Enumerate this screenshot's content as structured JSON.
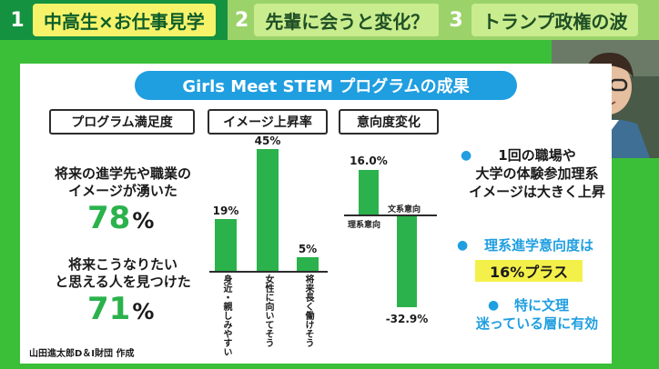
{
  "topics": [
    {
      "num": "1",
      "label": "中高生×お仕事見学"
    },
    {
      "num": "2",
      "label": "先輩に会うと変化？"
    },
    {
      "num": "3",
      "label": "トランプ政権の波"
    }
  ],
  "title": "Girls Meet STEM プログラムの成果",
  "sections": {
    "satisfaction": {
      "header": "プログラム満足度",
      "item1_line1": "将来の進学先や職業の",
      "item1_line2": "イメージが湧いた",
      "item1_value": "78",
      "item2_line1": "将来こうなりたい",
      "item2_line2": "と思える人を見つけた",
      "item2_value": "71",
      "unit": "%"
    },
    "image_rise": {
      "header": "イメージ上昇率"
    },
    "intent_change": {
      "header": "意向度変化"
    }
  },
  "chart_data": [
    {
      "type": "bar",
      "title": "イメージ上昇率",
      "categories": [
        "身近・親しみやすい",
        "女性に向いてそう",
        "将来長く働けそう"
      ],
      "values": [
        19,
        45,
        5
      ],
      "value_labels": [
        "19%",
        "45%",
        "5%"
      ]
    },
    {
      "type": "bar",
      "title": "意向度変化",
      "categories": [
        "理系意向",
        "文系意向"
      ],
      "values": [
        16.0,
        -32.9
      ],
      "value_labels": [
        "16.0%",
        "-32.9%"
      ]
    }
  ],
  "points": {
    "p1_line1": "1回の職場や",
    "p1_line2": "大学の体験参加理系",
    "p1_line3": "イメージは大きく上昇",
    "p2_line1": "理系進学意向度は",
    "p2_highlight": "16%プラス",
    "p3_line1": "特に文理",
    "p3_line2": "迷っている層に有効"
  },
  "credit": "山田進太郎D＆I財団 作成",
  "colors": {
    "board_green": "#3bbf38",
    "bar_green": "#2bb24c",
    "title_blue": "#1f9ee0",
    "highlight_yellow": "#f4f04a"
  }
}
